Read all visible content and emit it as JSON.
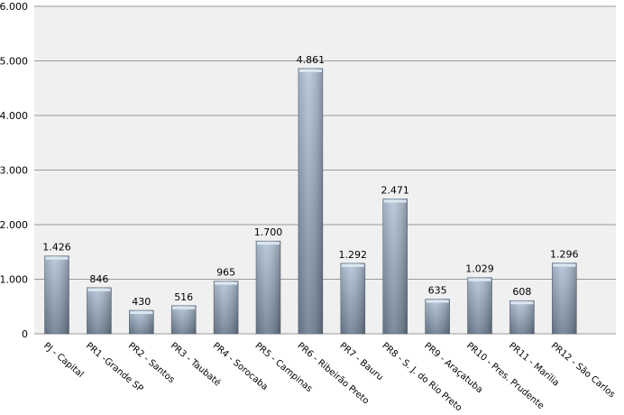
{
  "chart_data": {
    "type": "bar",
    "title": "",
    "xlabel": "",
    "ylabel": "",
    "ylim": [
      0,
      6000
    ],
    "yticks": [
      "0",
      "1.000",
      "2.000",
      "3.000",
      "4.000",
      "5.000",
      "6.000"
    ],
    "grid": true,
    "legend": "none",
    "categories": [
      "PJ - Capital",
      "PR1 -Grande SP",
      "PR2 - Santos",
      "PR3 - Taubaté",
      "PR4 - Sorocaba",
      "PR5 - Campinas",
      "PR6 - Ribeirão Preto",
      "PR7 - Bauru",
      "PR8 - S. J. do Rio Preto",
      "PR9 - Araçatuba",
      "PR10 - Pres. Prudente",
      "PR11 - Marília",
      "PR12 - São Carlos"
    ],
    "values": [
      1426,
      846,
      430,
      516,
      965,
      1700,
      4861,
      1292,
      2471,
      635,
      1029,
      608,
      1296
    ],
    "data_labels": [
      "1.426",
      "846",
      "430",
      "516",
      "965",
      "1.700",
      "4.861",
      "1.292",
      "2.471",
      "635",
      "1.029",
      "608",
      "1.296"
    ],
    "colors": {
      "bar_top": "#b4c6d8",
      "bar_bottom": "#6e7f92",
      "plot_bg": "#f0f0f0",
      "grid": "#9a9a9a"
    }
  }
}
